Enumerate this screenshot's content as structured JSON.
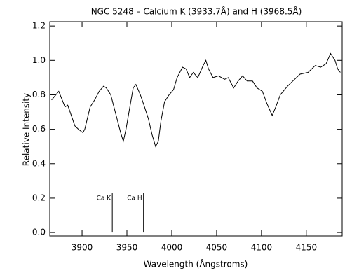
{
  "chart_data": {
    "type": "line",
    "title": "NGC 5248 – Calcium K (3933.7Å) and H (3968.5Å)",
    "xlabel": "Wavelength (Ångstroms)",
    "ylabel": "Relative Intensity",
    "xlim": [
      3864,
      4190
    ],
    "ylim": [
      -0.02,
      1.225
    ],
    "xticks": [
      3900,
      3950,
      4000,
      4050,
      4100,
      4150
    ],
    "yticks": [
      {
        "value": 0,
        "label": "0.0"
      },
      0.2,
      0.4,
      0.6,
      0.8,
      {
        "value": 1,
        "label": "1.0"
      },
      1.2
    ],
    "x": [
      3866,
      3874,
      3881,
      3884,
      3892,
      3896,
      3901,
      3903,
      3909,
      3914,
      3919,
      3924,
      3927,
      3932,
      3937,
      3943,
      3946,
      3949,
      3954,
      3957,
      3960,
      3965,
      3969,
      3974,
      3978,
      3982,
      3985,
      3988,
      3992,
      3997,
      4002,
      4006,
      4012,
      4016,
      4020,
      4024,
      4029,
      4035,
      4038,
      4041,
      4046,
      4052,
      4059,
      4063,
      4069,
      4074,
      4079,
      4084,
      4090,
      4095,
      4101,
      4106,
      4112,
      4116,
      4121,
      4129,
      4135,
      4143,
      4152,
      4160,
      4166,
      4172,
      4177,
      4182,
      4185,
      4188
    ],
    "series": [
      {
        "color": "#000000",
        "values": [
          0.77,
          0.82,
          0.73,
          0.74,
          0.62,
          0.6,
          0.58,
          0.6,
          0.73,
          0.77,
          0.82,
          0.85,
          0.84,
          0.8,
          0.7,
          0.58,
          0.53,
          0.6,
          0.75,
          0.84,
          0.86,
          0.8,
          0.74,
          0.66,
          0.57,
          0.5,
          0.53,
          0.65,
          0.76,
          0.8,
          0.83,
          0.9,
          0.96,
          0.95,
          0.9,
          0.93,
          0.9,
          0.97,
          1.0,
          0.95,
          0.9,
          0.91,
          0.89,
          0.9,
          0.84,
          0.88,
          0.91,
          0.88,
          0.88,
          0.84,
          0.82,
          0.75,
          0.68,
          0.73,
          0.8,
          0.85,
          0.88,
          0.92,
          0.93,
          0.97,
          0.96,
          0.98,
          1.04,
          1.0,
          0.95,
          0.93
        ]
      }
    ],
    "lines": [
      {
        "label": "Ca K",
        "x": 3933.7,
        "top": 0.23
      },
      {
        "label": "Ca H",
        "x": 3968.5,
        "top": 0.23
      }
    ]
  }
}
